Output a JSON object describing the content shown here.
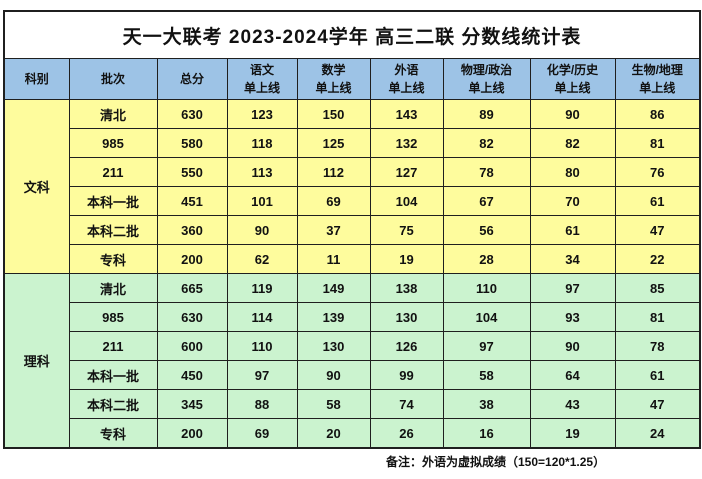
{
  "title": "天一大联考 2023-2024学年 高三二联 分数线统计表",
  "note": "备注：外语为虚拟成绩（150=120*1.25）",
  "colors": {
    "header_bg": "#9DC3E6",
    "liberal_arts_bg": "#FEFC9D",
    "science_bg": "#CBF3CF",
    "border": "#1F1F1F",
    "title_bg": "#FFFFFF"
  },
  "table": {
    "columns": [
      {
        "key": "category",
        "label": "科别",
        "sub": ""
      },
      {
        "key": "batch",
        "label": "批次",
        "sub": ""
      },
      {
        "key": "total",
        "label": "总分",
        "sub": ""
      },
      {
        "key": "chinese",
        "label": "语文",
        "sub": "单上线"
      },
      {
        "key": "math",
        "label": "数学",
        "sub": "单上线"
      },
      {
        "key": "foreign-language",
        "label": "外语",
        "sub": "单上线"
      },
      {
        "key": "physics-politics",
        "label": "物理/政治",
        "sub": "单上线"
      },
      {
        "key": "chemistry-history",
        "label": "化学/历史",
        "sub": "单上线"
      },
      {
        "key": "biology-geography",
        "label": "生物/地理",
        "sub": "单上线"
      }
    ],
    "sections": [
      {
        "key": "liberal-arts",
        "category": "文科",
        "rows": [
          {
            "batch": "清北",
            "scores": [
              "630",
              "123",
              "150",
              "143",
              "89",
              "90",
              "86"
            ]
          },
          {
            "batch": "985",
            "scores": [
              "580",
              "118",
              "125",
              "132",
              "82",
              "82",
              "81"
            ]
          },
          {
            "batch": "211",
            "scores": [
              "550",
              "113",
              "112",
              "127",
              "78",
              "80",
              "76"
            ]
          },
          {
            "batch": "本科一批",
            "scores": [
              "451",
              "101",
              "69",
              "104",
              "67",
              "70",
              "61"
            ]
          },
          {
            "batch": "本科二批",
            "scores": [
              "360",
              "90",
              "37",
              "75",
              "56",
              "61",
              "47"
            ]
          },
          {
            "batch": "专科",
            "scores": [
              "200",
              "62",
              "11",
              "19",
              "28",
              "34",
              "22"
            ]
          }
        ]
      },
      {
        "key": "science",
        "category": "理科",
        "rows": [
          {
            "batch": "清北",
            "scores": [
              "665",
              "119",
              "149",
              "138",
              "110",
              "97",
              "85"
            ]
          },
          {
            "batch": "985",
            "scores": [
              "630",
              "114",
              "139",
              "130",
              "104",
              "93",
              "81"
            ]
          },
          {
            "batch": "211",
            "scores": [
              "600",
              "110",
              "130",
              "126",
              "97",
              "90",
              "78"
            ]
          },
          {
            "batch": "本科一批",
            "scores": [
              "450",
              "97",
              "90",
              "99",
              "58",
              "64",
              "61"
            ]
          },
          {
            "batch": "本科二批",
            "scores": [
              "345",
              "88",
              "58",
              "74",
              "38",
              "43",
              "47"
            ]
          },
          {
            "batch": "专科",
            "scores": [
              "200",
              "69",
              "20",
              "26",
              "16",
              "19",
              "24"
            ]
          }
        ]
      }
    ]
  }
}
